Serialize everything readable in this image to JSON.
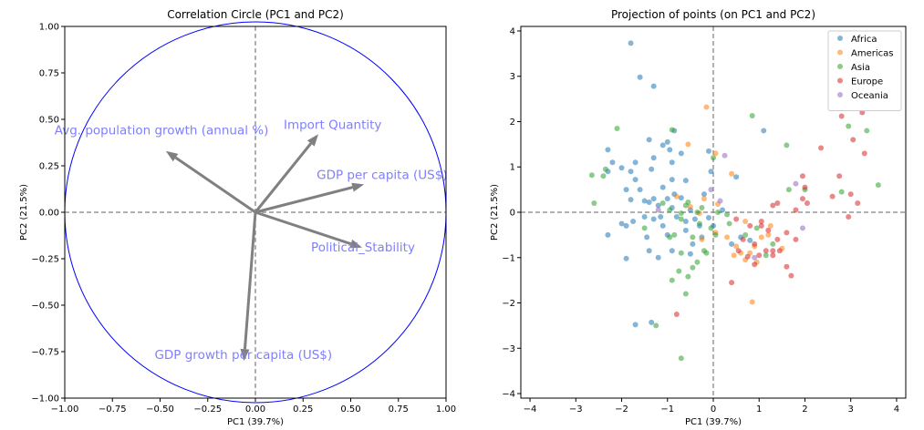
{
  "chart_data": [
    {
      "type": "correlation-circle",
      "title": "Correlation Circle (PC1 and PC2)",
      "xlabel": "PC1 (39.7%)",
      "ylabel": "PC2 (21.5%)",
      "xlim": [
        -1.0,
        1.0
      ],
      "ylim": [
        -1.0,
        1.0
      ],
      "xticks": [
        "−1.00",
        "−0.75",
        "−0.50",
        "−0.25",
        "0.00",
        "0.25",
        "0.50",
        "0.75",
        "1.00"
      ],
      "yticks": [
        "−1.00",
        "−0.75",
        "−0.50",
        "−0.25",
        "0.00",
        "0.25",
        "0.50",
        "0.75",
        "1.00"
      ],
      "circle_color": "#0000ff",
      "arrow_color": "#808080",
      "label_color": "#7f7fff",
      "vectors": [
        {
          "label": "Import Quantity",
          "x": 0.33,
          "y": 0.42
        },
        {
          "label": "Avg. population growth (annual %)",
          "x": -0.47,
          "y": 0.33
        },
        {
          "label": "GDP per capita (US$)",
          "x": 0.57,
          "y": 0.15
        },
        {
          "label": "Political_Stability",
          "x": 0.56,
          "y": -0.19
        },
        {
          "label": "GDP growth per capita (US$)",
          "x": -0.06,
          "y": -0.8
        }
      ]
    },
    {
      "type": "scatter",
      "title": "Projection of points (on PC1 and PC2)",
      "xlabel": "PC1 (39.7%)",
      "ylabel": "PC2 (21.5%)",
      "xlim": [
        -4.2,
        4.2
      ],
      "ylim": [
        -4.1,
        4.1
      ],
      "xticks": [
        "−4",
        "−3",
        "−2",
        "−1",
        "0",
        "1",
        "2",
        "3",
        "4"
      ],
      "yticks": [
        "−4",
        "−3",
        "−2",
        "−1",
        "0",
        "1",
        "2",
        "3",
        "4"
      ],
      "legend_position": "top-right",
      "series": [
        {
          "name": "Africa",
          "color": "#1f77b4",
          "points": [
            [
              -1.8,
              3.73
            ],
            [
              -1.6,
              2.98
            ],
            [
              -1.3,
              2.78
            ],
            [
              -2.3,
              1.38
            ],
            [
              -2.3,
              0.9
            ],
            [
              -2.2,
              1.1
            ],
            [
              -2.0,
              0.98
            ],
            [
              -1.8,
              0.9
            ],
            [
              -1.7,
              1.1
            ],
            [
              -1.4,
              1.6
            ],
            [
              -1.35,
              0.95
            ],
            [
              -1.3,
              1.2
            ],
            [
              -1.1,
              1.48
            ],
            [
              -1.0,
              1.55
            ],
            [
              -0.95,
              1.38
            ],
            [
              -0.9,
              1.1
            ],
            [
              -0.9,
              0.72
            ],
            [
              -0.85,
              1.8
            ],
            [
              -0.7,
              1.3
            ],
            [
              -0.6,
              0.7
            ],
            [
              -0.1,
              1.35
            ],
            [
              -0.05,
              0.9
            ],
            [
              0.5,
              0.78
            ],
            [
              1.1,
              1.8
            ],
            [
              -1.9,
              0.5
            ],
            [
              -1.8,
              0.28
            ],
            [
              -1.7,
              0.72
            ],
            [
              -1.6,
              0.5
            ],
            [
              -1.5,
              0.25
            ],
            [
              -1.4,
              0.22
            ],
            [
              -1.3,
              0.3
            ],
            [
              -1.2,
              0.15
            ],
            [
              -1.1,
              0.55
            ],
            [
              -1.0,
              0.3
            ],
            [
              -0.9,
              0.1
            ],
            [
              -0.85,
              0.4
            ],
            [
              -0.7,
              0.32
            ],
            [
              -0.6,
              -0.2
            ],
            [
              -0.5,
              0.05
            ],
            [
              -0.4,
              -0.15
            ],
            [
              -0.3,
              -0.3
            ],
            [
              -0.2,
              0.4
            ],
            [
              -0.1,
              -0.12
            ],
            [
              0.0,
              -0.3
            ],
            [
              0.2,
              0.05
            ],
            [
              -2.3,
              -0.5
            ],
            [
              -1.9,
              -0.3
            ],
            [
              -1.75,
              -0.2
            ],
            [
              -1.5,
              -0.1
            ],
            [
              -1.45,
              -0.55
            ],
            [
              -1.3,
              -0.15
            ],
            [
              -1.1,
              -0.3
            ],
            [
              -1.0,
              -0.5
            ],
            [
              -0.8,
              -0.1
            ],
            [
              -0.6,
              -0.4
            ],
            [
              -0.45,
              -0.7
            ],
            [
              -0.25,
              -0.55
            ],
            [
              -1.4,
              -0.85
            ],
            [
              -1.2,
              -1.0
            ],
            [
              -1.9,
              -1.02
            ],
            [
              -0.9,
              -0.85
            ],
            [
              -0.5,
              -0.92
            ],
            [
              -1.7,
              -2.48
            ],
            [
              -1.35,
              -2.43
            ],
            [
              0.4,
              -0.7
            ],
            [
              0.6,
              -0.55
            ],
            [
              0.8,
              -0.62
            ],
            [
              -2.0,
              -0.25
            ],
            [
              -1.15,
              -0.1
            ]
          ]
        },
        {
          "name": "Americas",
          "color": "#ff7f0e",
          "points": [
            [
              -0.15,
              2.32
            ],
            [
              -0.55,
              1.5
            ],
            [
              0.05,
              1.3
            ],
            [
              0.4,
              0.85
            ],
            [
              -0.8,
              0.35
            ],
            [
              -0.5,
              0.12
            ],
            [
              -0.2,
              0.3
            ],
            [
              0.1,
              0.18
            ],
            [
              -0.3,
              -0.02
            ],
            [
              0.3,
              -0.55
            ],
            [
              0.5,
              -0.75
            ],
            [
              0.6,
              -0.9
            ],
            [
              0.7,
              -1.05
            ],
            [
              0.8,
              -0.9
            ],
            [
              0.9,
              -0.75
            ],
            [
              1.05,
              -0.55
            ],
            [
              1.2,
              -0.5
            ],
            [
              -0.25,
              -0.6
            ],
            [
              0.05,
              -0.45
            ],
            [
              0.85,
              -1.98
            ],
            [
              1.5,
              -0.8
            ],
            [
              0.45,
              -0.95
            ],
            [
              0.95,
              -1.1
            ],
            [
              0.7,
              -0.2
            ],
            [
              1.25,
              -0.3
            ]
          ]
        },
        {
          "name": "Asia",
          "color": "#2ca02c",
          "points": [
            [
              -2.65,
              0.82
            ],
            [
              -2.4,
              0.8
            ],
            [
              -2.35,
              0.95
            ],
            [
              -2.1,
              1.85
            ],
            [
              -0.9,
              1.82
            ],
            [
              0.0,
              1.2
            ],
            [
              0.85,
              2.13
            ],
            [
              1.6,
              1.48
            ],
            [
              2.95,
              1.9
            ],
            [
              3.35,
              1.8
            ],
            [
              3.6,
              0.6
            ],
            [
              2.0,
              0.5
            ],
            [
              1.65,
              0.5
            ],
            [
              2.8,
              0.45
            ],
            [
              -2.6,
              0.2
            ],
            [
              -1.1,
              0.2
            ],
            [
              -0.95,
              0.05
            ],
            [
              -0.7,
              -0.02
            ],
            [
              -0.6,
              0.15
            ],
            [
              -0.55,
              0.22
            ],
            [
              -0.35,
              0.0
            ],
            [
              -0.25,
              0.1
            ],
            [
              0.1,
              0.0
            ],
            [
              0.3,
              -0.05
            ],
            [
              -0.85,
              -0.5
            ],
            [
              -0.7,
              -0.15
            ],
            [
              -0.45,
              -0.55
            ],
            [
              -0.3,
              -0.25
            ],
            [
              -0.2,
              -0.85
            ],
            [
              -0.05,
              -0.35
            ],
            [
              0.05,
              -0.5
            ],
            [
              0.35,
              -0.25
            ],
            [
              -0.7,
              -0.9
            ],
            [
              -0.75,
              -1.3
            ],
            [
              -0.45,
              -1.22
            ],
            [
              -0.55,
              -1.42
            ],
            [
              -0.9,
              -1.5
            ],
            [
              -0.35,
              -1.1
            ],
            [
              -0.6,
              -1.8
            ],
            [
              -0.15,
              -0.9
            ],
            [
              -1.25,
              -2.5
            ],
            [
              -0.7,
              -3.22
            ],
            [
              0.7,
              -0.5
            ],
            [
              0.95,
              -0.35
            ],
            [
              1.15,
              -0.95
            ],
            [
              1.3,
              -0.7
            ],
            [
              -1.5,
              -0.35
            ],
            [
              -0.95,
              -0.55
            ]
          ]
        },
        {
          "name": "Europe",
          "color": "#d62728",
          "points": [
            [
              3.25,
              2.2
            ],
            [
              2.8,
              2.12
            ],
            [
              3.05,
              1.6
            ],
            [
              2.35,
              1.42
            ],
            [
              1.95,
              0.8
            ],
            [
              2.75,
              0.8
            ],
            [
              3.3,
              1.3
            ],
            [
              3.0,
              0.4
            ],
            [
              2.6,
              0.35
            ],
            [
              1.95,
              0.3
            ],
            [
              1.8,
              0.05
            ],
            [
              1.4,
              0.2
            ],
            [
              1.3,
              0.15
            ],
            [
              2.05,
              0.2
            ],
            [
              3.15,
              0.2
            ],
            [
              2.95,
              -0.1
            ],
            [
              0.5,
              -0.15
            ],
            [
              0.8,
              -0.3
            ],
            [
              1.05,
              -0.3
            ],
            [
              1.2,
              -0.4
            ],
            [
              1.6,
              -0.45
            ],
            [
              1.8,
              -0.6
            ],
            [
              0.55,
              -0.85
            ],
            [
              0.75,
              -0.98
            ],
            [
              0.9,
              -0.7
            ],
            [
              1.0,
              -0.95
            ],
            [
              1.15,
              -0.85
            ],
            [
              1.3,
              -0.85
            ],
            [
              1.45,
              -0.85
            ],
            [
              1.6,
              -1.2
            ],
            [
              -0.8,
              -2.25
            ],
            [
              0.4,
              -1.55
            ],
            [
              0.9,
              -1.15
            ],
            [
              1.3,
              -0.95
            ],
            [
              1.7,
              -1.4
            ],
            [
              1.05,
              -0.2
            ],
            [
              2.0,
              0.55
            ],
            [
              0.65,
              -0.6
            ],
            [
              1.4,
              -0.6
            ]
          ]
        },
        {
          "name": "Oceania",
          "color": "#9467bd",
          "points": [
            [
              0.25,
              1.25
            ],
            [
              0.15,
              0.25
            ],
            [
              1.8,
              0.63
            ],
            [
              -0.05,
              0.5
            ],
            [
              -1.2,
              0.05
            ],
            [
              1.95,
              -0.35
            ],
            [
              0.9,
              -1.0
            ]
          ]
        }
      ]
    }
  ]
}
